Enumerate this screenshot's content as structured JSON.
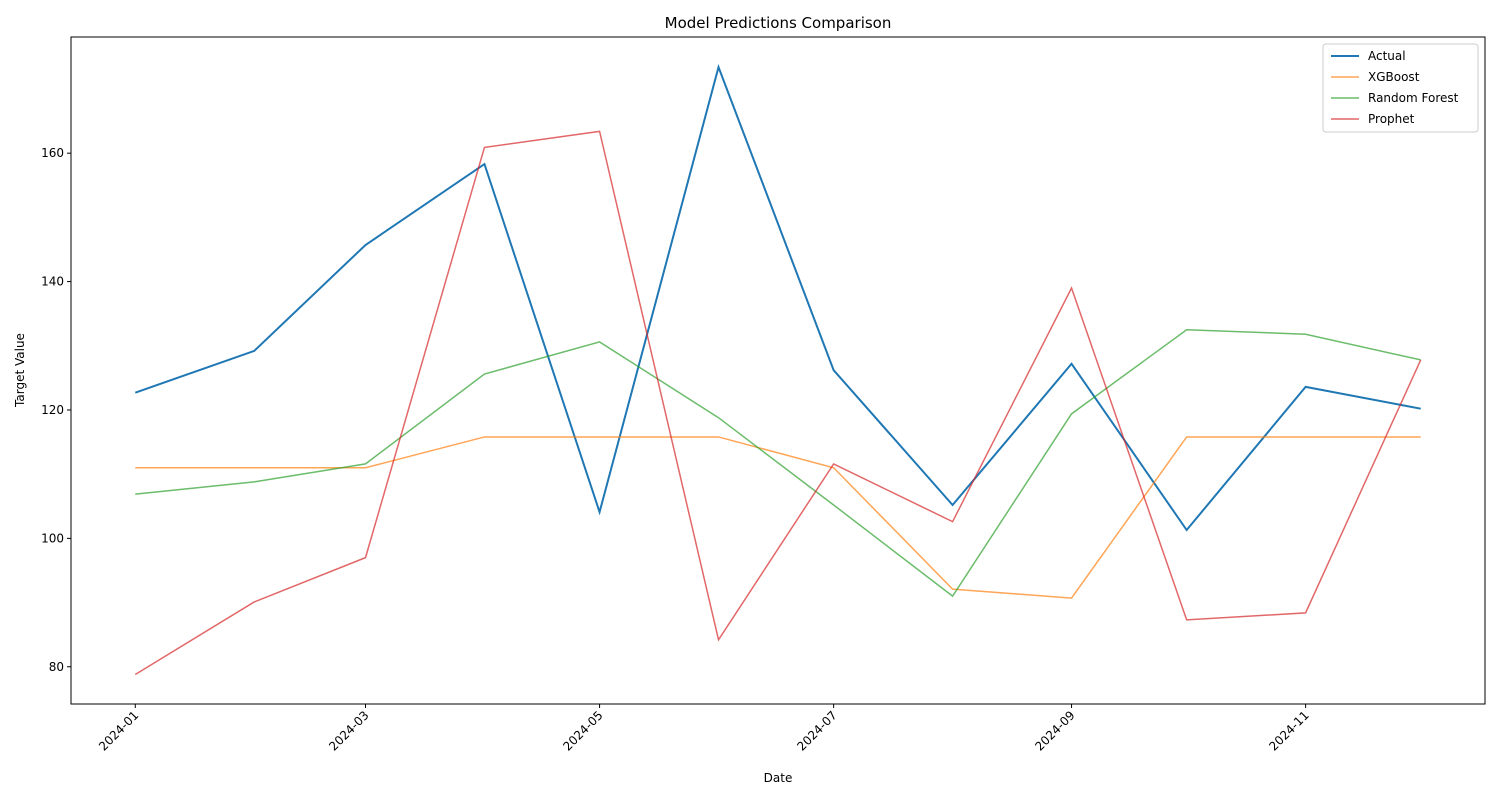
{
  "chart_data": {
    "type": "line",
    "title": "Model Predictions Comparison",
    "x_label": "Date",
    "y_label": "Target Value",
    "x": [
      "2024-01",
      "2024-02",
      "2024-03",
      "2024-04",
      "2024-05",
      "2024-06",
      "2024-07",
      "2024-08",
      "2024-09",
      "2024-10",
      "2024-11",
      "2024-12"
    ],
    "xticks": [
      "2024-01",
      "2024-03",
      "2024-05",
      "2024-07",
      "2024-09",
      "2024-11"
    ],
    "ylim": [
      74.2,
      178.1
    ],
    "yticks": [
      80,
      100,
      120,
      140,
      160
    ],
    "legend": "upper right",
    "series": [
      {
        "name": "Actual",
        "color": "#1f77b4",
        "values": [
          122.7,
          129.2,
          145.7,
          158.3,
          104.1,
          173.4,
          126.2,
          105.2,
          127.2,
          101.3,
          123.6,
          120.2
        ]
      },
      {
        "name": "XGBoost",
        "color": "#ff7f0e",
        "values": [
          111.0,
          111.0,
          111.0,
          115.8,
          115.8,
          115.8,
          111.0,
          92.1,
          90.7,
          115.8,
          115.8,
          115.8
        ]
      },
      {
        "name": "Random Forest",
        "color": "#2ca02c",
        "values": [
          106.9,
          108.8,
          111.6,
          125.6,
          130.6,
          118.8,
          105.2,
          91.0,
          119.4,
          132.5,
          131.8,
          127.8
        ]
      },
      {
        "name": "Prophet",
        "color": "#d62728",
        "values": [
          78.8,
          90.1,
          97.0,
          160.9,
          163.4,
          84.2,
          111.6,
          102.6,
          139.0,
          87.3,
          88.4,
          127.8
        ]
      }
    ]
  }
}
